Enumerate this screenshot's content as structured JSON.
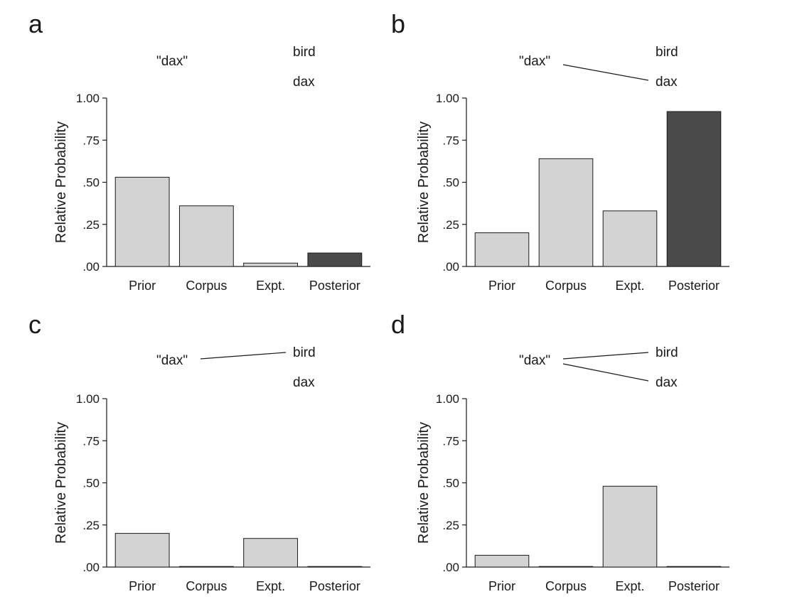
{
  "colors": {
    "light_bar": "#d3d3d3",
    "dark_bar": "#4a4a4a",
    "ink": "#1a1a1a"
  },
  "chart_data": [
    {
      "panel": "a",
      "type": "bar",
      "words": [
        "\"dax\"",
        "bird",
        "dax"
      ],
      "links": [],
      "categories": [
        "Prior",
        "Corpus",
        "Expt.",
        "Posterior"
      ],
      "values": [
        0.53,
        0.36,
        0.02,
        0.08
      ],
      "ylabel": "Relative Probability",
      "ylim": [
        0,
        1
      ],
      "yticks": [
        0,
        0.25,
        0.5,
        0.75,
        1
      ],
      "ytick_labels": [
        ".00",
        ".25",
        ".50",
        ".75",
        "1.00"
      ],
      "highlight": "Posterior"
    },
    {
      "panel": "b",
      "type": "bar",
      "words": [
        "\"dax\"",
        "bird",
        "dax"
      ],
      "links": [
        "dax"
      ],
      "categories": [
        "Prior",
        "Corpus",
        "Expt.",
        "Posterior"
      ],
      "values": [
        0.2,
        0.64,
        0.33,
        0.92
      ],
      "ylabel": "Relative Probability",
      "ylim": [
        0,
        1
      ],
      "yticks": [
        0,
        0.25,
        0.5,
        0.75,
        1
      ],
      "ytick_labels": [
        ".00",
        ".25",
        ".50",
        ".75",
        "1.00"
      ],
      "highlight": "Posterior"
    },
    {
      "panel": "c",
      "type": "bar",
      "words": [
        "\"dax\"",
        "bird",
        "dax"
      ],
      "links": [
        "bird"
      ],
      "categories": [
        "Prior",
        "Corpus",
        "Expt.",
        "Posterior"
      ],
      "values": [
        0.2,
        0.0,
        0.17,
        0.003
      ],
      "ylabel": "Relative Probability",
      "ylim": [
        0,
        1
      ],
      "yticks": [
        0,
        0.25,
        0.5,
        0.75,
        1
      ],
      "ytick_labels": [
        ".00",
        ".25",
        ".50",
        ".75",
        "1.00"
      ],
      "highlight": "Posterior"
    },
    {
      "panel": "d",
      "type": "bar",
      "words": [
        "\"dax\"",
        "bird",
        "dax"
      ],
      "links": [
        "bird",
        "dax"
      ],
      "categories": [
        "Prior",
        "Corpus",
        "Expt.",
        "Posterior"
      ],
      "values": [
        0.07,
        0.0,
        0.48,
        0.003
      ],
      "ylabel": "Relative Probability",
      "ylim": [
        0,
        1
      ],
      "yticks": [
        0,
        0.25,
        0.5,
        0.75,
        1
      ],
      "ytick_labels": [
        ".00",
        ".25",
        ".50",
        ".75",
        "1.00"
      ],
      "highlight": "Posterior"
    }
  ]
}
